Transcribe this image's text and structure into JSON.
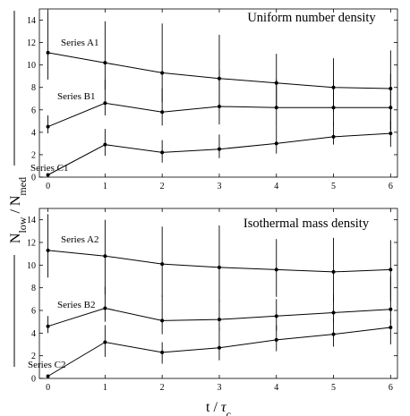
{
  "figure": {
    "ylabel_main": "N",
    "ylabel_sub1": "low",
    "ylabel_mid": " / N",
    "ylabel_sub2": "med",
    "xlabel_main": "t / ",
    "xlabel_tau": "τ",
    "xlabel_sub": "c",
    "line_color": "#000000"
  },
  "chart_data": [
    {
      "type": "line",
      "title": "Uniform number density",
      "x": [
        0,
        1,
        2,
        3,
        4,
        5,
        6
      ],
      "xlim": [
        -0.15,
        6.12
      ],
      "ylim": [
        0,
        15
      ],
      "yticks": [
        0,
        2,
        4,
        6,
        8,
        10,
        12,
        14
      ],
      "xticks": [
        0,
        1,
        2,
        3,
        4,
        5,
        6
      ],
      "series": [
        {
          "name": "Series A1",
          "values": [
            11.1,
            10.2,
            9.3,
            8.8,
            8.4,
            8.0,
            7.9
          ],
          "err_low": [
            8.7,
            7.8,
            6.7,
            6.1,
            6.1,
            5.8,
            4.2
          ],
          "err_high": [
            14.7,
            13.9,
            13.7,
            12.7,
            11.0,
            10.6,
            11.3
          ]
        },
        {
          "name": "Series B1",
          "values": [
            4.5,
            6.6,
            5.8,
            6.3,
            6.2,
            6.2,
            6.2
          ],
          "err_low": [
            3.9,
            5.5,
            4.6,
            4.7,
            4.4,
            4.6,
            4.2
          ],
          "err_high": [
            5.5,
            8.7,
            7.9,
            9.6,
            8.7,
            8.7,
            9.2
          ]
        },
        {
          "name": "Series C1",
          "values": [
            0.2,
            2.9,
            2.2,
            2.5,
            3.0,
            3.6,
            3.9
          ],
          "err_low": [
            0.1,
            1.9,
            1.3,
            1.7,
            2.1,
            2.9,
            2.7
          ],
          "err_high": [
            0.3,
            4.3,
            3.3,
            3.8,
            4.4,
            4.9,
            5.0
          ]
        }
      ]
    },
    {
      "type": "line",
      "title": "Isothermal mass density",
      "x": [
        0,
        1,
        2,
        3,
        4,
        5,
        6
      ],
      "xlim": [
        -0.15,
        6.12
      ],
      "ylim": [
        0,
        15
      ],
      "yticks": [
        0,
        2,
        4,
        6,
        8,
        10,
        12,
        14
      ],
      "xticks": [
        0,
        1,
        2,
        3,
        4,
        5,
        6
      ],
      "series": [
        {
          "name": "Series A2",
          "values": [
            11.3,
            10.8,
            10.1,
            9.8,
            9.6,
            9.4,
            9.6
          ],
          "err_low": [
            8.9,
            7.4,
            7.2,
            6.7,
            7.2,
            6.7,
            6.8
          ],
          "err_high": [
            14.5,
            14.0,
            13.4,
            13.5,
            12.3,
            12.4,
            12.2
          ]
        },
        {
          "name": "Series B2",
          "values": [
            4.6,
            6.2,
            5.1,
            5.2,
            5.5,
            5.8,
            6.1
          ],
          "err_low": [
            4.0,
            5.0,
            3.9,
            4.2,
            4.2,
            4.9,
            4.8
          ],
          "err_high": [
            5.5,
            8.1,
            7.3,
            6.9,
            7.0,
            7.4,
            9.0
          ]
        },
        {
          "name": "Series C2",
          "values": [
            0.2,
            3.2,
            2.3,
            2.7,
            3.4,
            3.9,
            4.5
          ],
          "err_low": [
            0.1,
            1.9,
            1.3,
            1.6,
            2.4,
            2.8,
            3.0
          ],
          "err_high": [
            0.3,
            4.7,
            3.2,
            4.5,
            4.7,
            5.3,
            5.2
          ]
        }
      ]
    }
  ]
}
